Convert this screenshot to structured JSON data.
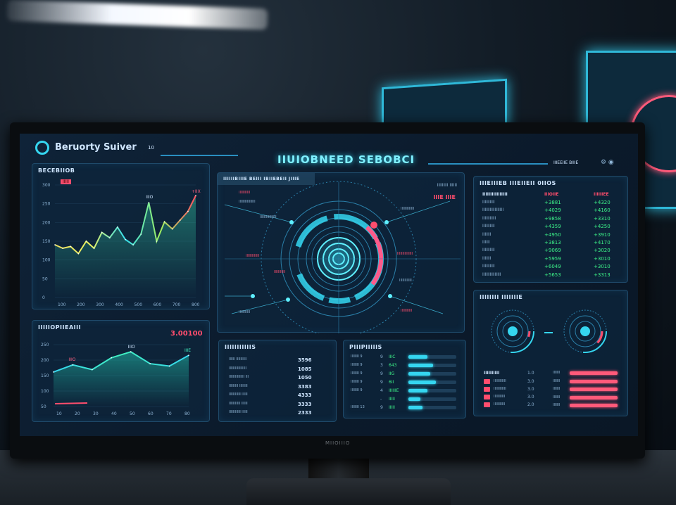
{
  "header": {
    "app_title": "Beruorty Suiver",
    "app_badge": "10",
    "center_title": "IIUIOBNEED SEBOBCI",
    "right_label": "IIIEEIIE BIIIE"
  },
  "colors": {
    "accent": "#35d6f0",
    "positive": "#3df58a",
    "negative": "#ff4d6d",
    "panel": "#0e263c"
  },
  "left_top": {
    "title": "BECEBIIOB",
    "legend": "IIIII",
    "peak_label": "IIIO",
    "end_label": "+IIX",
    "y_ticks": [
      "300",
      "250",
      "200",
      "150",
      "100",
      "50",
      "0"
    ],
    "x_ticks": [
      "100",
      "200",
      "300",
      "400",
      "500",
      "600",
      "700",
      "800"
    ],
    "values": [
      150,
      140,
      145,
      125,
      160,
      140,
      185,
      170,
      200,
      165,
      150,
      180,
      270,
      160,
      215,
      195,
      220,
      245,
      290
    ]
  },
  "left_bottom": {
    "title": "IIIIIOPIIEAIII",
    "value": "3.00100",
    "peak_label": "IIIO",
    "start_label": "IIIO",
    "end_label": "IIIE",
    "y_ticks": [
      "250",
      "200",
      "150",
      "100",
      "50"
    ],
    "x_ticks": [
      "10",
      "20",
      "30",
      "40",
      "50",
      "60",
      "70",
      "80"
    ],
    "values": [
      145,
      175,
      155,
      205,
      230,
      180,
      170,
      215
    ]
  },
  "center": {
    "title": "IIIIIIBIIIE BEIII IBIIEBEII JIIIE",
    "top_right": "IIIIIIIII IIIIII",
    "alert": "IIIE IIIE",
    "labels": [
      "IIIIIIIIIII",
      "IIIIIIIIIIIIIIII",
      "IIIIIIIIIIIII",
      "IIIIIIIIIII",
      "IIIIIIIIIIIII",
      "IIIIIIIIIIIIIII",
      "IIIIIIIIIIII",
      "IIIIIIIIIII"
    ]
  },
  "stats": {
    "title": "IIIIIIIIIIIS",
    "rows": [
      [
        "IIIIII IIIIIIIIII",
        "3596"
      ],
      [
        "IIIIIIIIIIIIIIIII",
        "1085"
      ],
      [
        "IIIIIIIIIIIIIII III",
        "1050"
      ],
      [
        "IIIIIIIII IIIIIIII",
        "3383"
      ],
      [
        "IIIIIIIIIIII IIIII",
        "4333"
      ],
      [
        "IIIIIIIIIII IIIIII",
        "3333"
      ],
      [
        "IIIIIIIIIIII IIIII",
        "2333"
      ]
    ]
  },
  "progress": {
    "title": "PIIIPIIIIIS",
    "rows": [
      {
        "label": "IIIIIIII 9",
        "n": "9",
        "v": "IIIC",
        "pct": 40
      },
      {
        "label": "IIIIIIII 9",
        "n": "3",
        "v": "643",
        "pct": 52
      },
      {
        "label": "IIIIIIII 9",
        "n": "9",
        "v": "IIG",
        "pct": 45
      },
      {
        "label": "IIIIIIII 9",
        "n": "9",
        "v": "6II",
        "pct": 58
      },
      {
        "label": "IIIIIIII 9",
        "n": "4",
        "v": "IIIIIIE",
        "pct": 40
      },
      {
        "label": "",
        "n": "-",
        "v": "IIIII",
        "pct": 25
      },
      {
        "label": "IIIIIIII 13",
        "n": "9",
        "v": "IIIII",
        "pct": 30
      }
    ]
  },
  "table": {
    "title": "IIIEIIIEB IIIEIIEII 0IIOS",
    "headers": [
      "IIIIIIIIIIIIIIII",
      "IIIOIIE",
      "IIIIIIEE"
    ],
    "rows": [
      [
        "IIIIIIIIII",
        "+3881",
        "+4320"
      ],
      [
        "IIIIIIIIIIIIIIIII",
        "+4029",
        "+4160"
      ],
      [
        "IIIIIIIIIII",
        "+9858",
        "+3310"
      ],
      [
        "IIIIIIIIII",
        "+4359",
        "+4250"
      ],
      [
        "IIIIIII",
        "+4950",
        "+3910"
      ],
      [
        "IIIIII",
        "+3813",
        "+4170"
      ],
      [
        "IIIIIIIIII",
        "+9069",
        "+3020"
      ],
      [
        "IIIIIII",
        "+5959",
        "+3010"
      ],
      [
        "IIIIIIIIII",
        "+6049",
        "+3010"
      ],
      [
        "IIIIIIIIIIIIIII",
        "+5653",
        "+3313"
      ]
    ]
  },
  "rings": {
    "title": "IIIIIIII IIIIIIIE",
    "legend_title": "IIIIIIIIII",
    "legend_value": "1.0",
    "items": [
      [
        "IIIIIIIIIIII",
        "3.0"
      ],
      [
        "IIIIIIIIIIII",
        "3.0"
      ],
      [
        "IIIIIIIIIII",
        "3.0"
      ],
      [
        "IIIIIIIIIII",
        "2.0"
      ]
    ],
    "bar_labels": [
      "IIIIIII",
      "IIIIIII",
      "IIIIIII",
      "IIIIIII",
      "IIIIIII"
    ]
  },
  "monitor_brand": "MIIOIIIO"
}
